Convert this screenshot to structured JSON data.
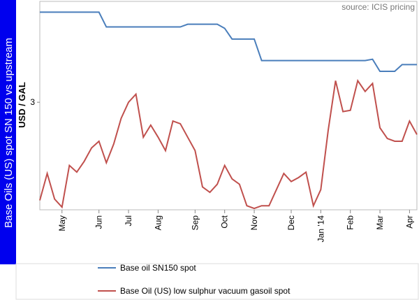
{
  "chart_data": {
    "type": "line",
    "title": "Base Oils (US) spot SN 150 vs upstream",
    "ylabel": "USD / GAL",
    "source": "source: ICIS pricing",
    "categories": [
      null,
      null,
      null,
      "May",
      null,
      null,
      null,
      null,
      "Jun",
      null,
      null,
      null,
      "Jul",
      null,
      null,
      null,
      "Aug",
      null,
      null,
      null,
      null,
      "Sep",
      null,
      null,
      null,
      "Oct",
      null,
      null,
      null,
      "Nov",
      null,
      null,
      null,
      null,
      "Dec",
      null,
      null,
      null,
      "Jan '14",
      null,
      null,
      null,
      "Feb",
      null,
      null,
      null,
      "Mar",
      null,
      null,
      null,
      "Apr",
      null
    ],
    "series": [
      {
        "name": "Base oil SN150 spot",
        "color": "#4a7ebb",
        "values": [
          3.67,
          3.67,
          3.67,
          3.67,
          3.67,
          3.67,
          3.67,
          3.67,
          3.67,
          3.56,
          3.56,
          3.56,
          3.56,
          3.56,
          3.56,
          3.56,
          3.56,
          3.56,
          3.56,
          3.56,
          3.58,
          3.58,
          3.58,
          3.58,
          3.58,
          3.55,
          3.47,
          3.47,
          3.47,
          3.47,
          3.31,
          3.31,
          3.31,
          3.31,
          3.31,
          3.31,
          3.31,
          3.31,
          3.31,
          3.31,
          3.31,
          3.31,
          3.31,
          3.31,
          3.31,
          3.32,
          3.23,
          3.23,
          3.23,
          3.28,
          3.28,
          3.28
        ]
      },
      {
        "name": "Base Oil (US) low sulphur vacuum gasoil spot",
        "color": "#c0504d",
        "values": [
          2.27,
          2.47,
          2.28,
          2.22,
          2.53,
          2.48,
          2.56,
          2.66,
          2.71,
          2.55,
          2.69,
          2.88,
          3.0,
          3.06,
          2.74,
          2.83,
          2.74,
          2.64,
          2.86,
          2.84,
          2.74,
          2.64,
          2.37,
          2.33,
          2.39,
          2.53,
          2.43,
          2.39,
          2.23,
          2.21,
          2.23,
          2.23,
          2.35,
          2.47,
          2.41,
          2.44,
          2.48,
          2.23,
          2.35,
          2.79,
          3.16,
          2.93,
          2.94,
          3.16,
          3.08,
          3.14,
          2.81,
          2.73,
          2.71,
          2.71,
          2.86,
          2.76
        ]
      }
    ],
    "ylim": [
      2.2,
      3.75
    ],
    "yticks": [
      3
    ]
  }
}
